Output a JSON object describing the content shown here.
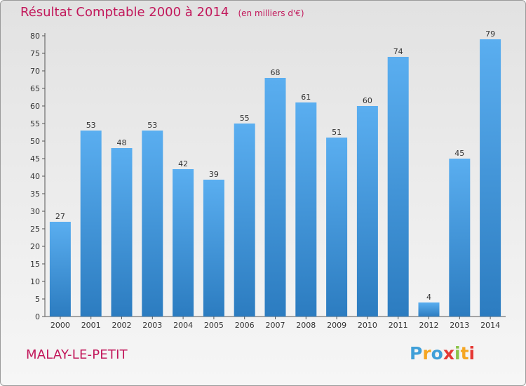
{
  "title": "Résultat Comptable 2000 à 2014",
  "subtitle": "(en milliers d'€)",
  "commune": "MALAY-LE-PETIT",
  "logo": {
    "text": "Proxiti",
    "letters": [
      "P",
      "r",
      "o",
      "x",
      "i",
      "t",
      "i"
    ],
    "colors": [
      "#3f9fd8",
      "#f5a623",
      "#3f9fd8",
      "#e53935",
      "#8bc34a",
      "#f5a623",
      "#e53935"
    ]
  },
  "colors": {
    "bar_top": "#5aaef0",
    "bar_bottom": "#2c7cc0",
    "title": "#c2185b"
  },
  "chart_data": {
    "type": "bar",
    "title": "Résultat Comptable 2000 à 2014",
    "subtitle": "(en milliers d'€)",
    "categories": [
      "2000",
      "2001",
      "2002",
      "2003",
      "2004",
      "2005",
      "2006",
      "2007",
      "2008",
      "2009",
      "2010",
      "2011",
      "2012",
      "2013",
      "2014"
    ],
    "values": [
      27,
      53,
      48,
      53,
      42,
      39,
      55,
      68,
      61,
      51,
      60,
      74,
      4,
      45,
      79
    ],
    "ylim": [
      0,
      80
    ],
    "yticks": [
      0,
      5,
      10,
      15,
      20,
      25,
      30,
      35,
      40,
      45,
      50,
      55,
      60,
      65,
      70,
      75,
      80
    ],
    "grid": false,
    "data_labels": true
  }
}
